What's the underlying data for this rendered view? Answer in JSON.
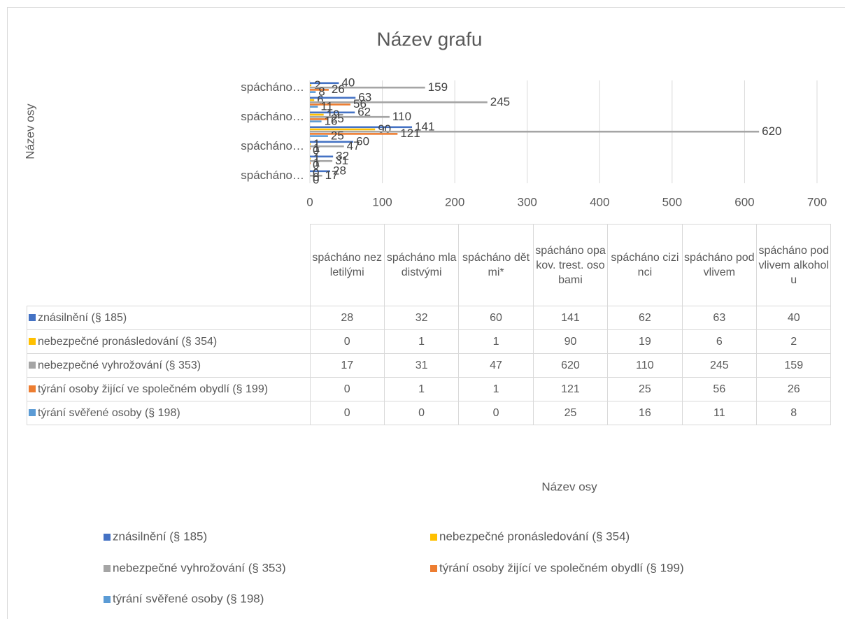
{
  "chart_data": {
    "type": "bar",
    "orientation": "horizontal",
    "title": "Název grafu",
    "y_axis_title": "Název osy",
    "x_axis_title": "Název osy",
    "categories": [
      "spácháno nezletilými",
      "spácháno mladistvými",
      "spácháno dětmi*",
      "spácháno opakov. trest. osobami",
      "spácháno cizinci",
      "spácháno pod vlivem",
      "spácháno pod vlivem alkoholu"
    ],
    "category_axis_labels": [
      "spácháno…",
      null,
      "spácháno…",
      null,
      "spácháno…",
      null,
      "spácháno…"
    ],
    "series": [
      {
        "name": "znásilnění (§ 185)",
        "color": "#4472c4",
        "values": [
          28,
          32,
          60,
          141,
          62,
          63,
          40
        ]
      },
      {
        "name": "nebezpečné pronásledování (§ 354)",
        "color": "#ffc000",
        "values": [
          0,
          1,
          1,
          90,
          19,
          6,
          2
        ]
      },
      {
        "name": "nebezpečné vyhrožování (§ 353)",
        "color": "#a5a5a5",
        "values": [
          17,
          31,
          47,
          620,
          110,
          245,
          159
        ]
      },
      {
        "name": "týrání osoby žijící ve společném obydlí (§ 199)",
        "color": "#ed7d31",
        "values": [
          0,
          1,
          1,
          121,
          25,
          56,
          26
        ]
      },
      {
        "name": "týrání svěřené osoby (§ 198)",
        "color": "#5b9bd5",
        "values": [
          0,
          0,
          0,
          25,
          16,
          11,
          8
        ]
      }
    ],
    "xlim": [
      0,
      700
    ],
    "xticks": [
      0,
      100,
      200,
      300,
      400,
      500,
      600,
      700
    ],
    "grid": true,
    "data_labels": true,
    "data_table": true,
    "legend": "bottom"
  }
}
